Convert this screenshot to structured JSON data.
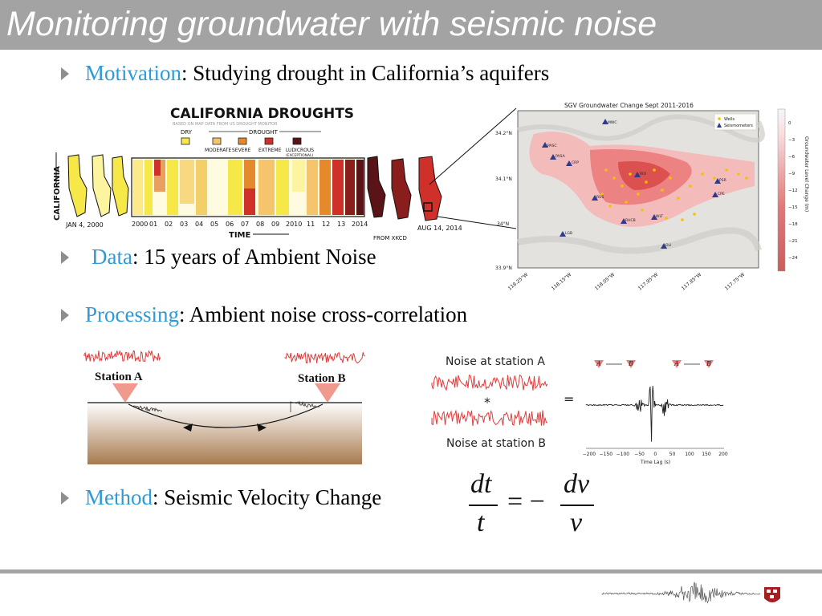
{
  "title": "Monitoring groundwater with seismic noise",
  "bullets": [
    {
      "keyword": "Motivation",
      "text": ": Studying drought in California’s aquifers"
    },
    {
      "keyword": "Data",
      "text": ": 15 years of Ambient Noise"
    },
    {
      "keyword": "Processing",
      "text": ": Ambient noise cross-correlation"
    },
    {
      "keyword": "Method",
      "text": ": Seismic Velocity Change"
    }
  ],
  "xkcd": {
    "title": "CALIFORNIA DROUGHTS",
    "subtitle": "BASED ON MAP DATA FROM US DROUGHT MONITOR",
    "legend_dry": "DRY",
    "legend_drought": "DROUGHT",
    "legend_items": [
      "MODERATE",
      "SEVERE",
      "EXTREME",
      "LUDICROUS"
    ],
    "legend_sub": "(EXCEPTIONAL)",
    "legend_colors": [
      "#f7e84a",
      "#f5c46c",
      "#e58a2c",
      "#d0302a",
      "#5a1418"
    ],
    "y_label": "CALIFORNIA",
    "start_label": "JAN 4, 2000",
    "end_label": "AUG 14, 2014",
    "years": [
      "2000",
      "01",
      "02",
      "03",
      "04",
      "05",
      "06",
      "07",
      "08",
      "09",
      "2010",
      "11",
      "12",
      "13",
      "2014"
    ],
    "x_label": "TIME",
    "credit": "FROM XKCD"
  },
  "map": {
    "title": "SGV Groundwater Change Sept 2011-2016",
    "legend": [
      "Wells",
      "Seismometers"
    ],
    "y_ticks": [
      "34.2°N",
      "34.1°N",
      "34°N",
      "33.9°N"
    ],
    "x_ticks": [
      "118.25°W",
      "118.15°W",
      "118.05°W",
      "117.95°W",
      "117.85°W",
      "117.75°W"
    ],
    "stations": [
      "MWC",
      "PASC",
      "PASA",
      "CRP",
      "RIO",
      "RUS",
      "PSR",
      "CPE",
      "RHCB",
      "WLT",
      "LGB",
      "OLI"
    ],
    "colorbar_ticks": [
      "0",
      "−3",
      "−6",
      "−9",
      "−12",
      "−15",
      "−18",
      "−21",
      "−24"
    ],
    "colorbar_label": "Groundwater Level Change (m)"
  },
  "processing": {
    "station_a": "Station A",
    "station_b": "Station B",
    "noise_a": "Noise at station A",
    "noise_b": "Noise at station B",
    "star": "*",
    "equals": "=",
    "cc_labels": [
      "A",
      "B",
      "A",
      "B"
    ],
    "lag_ticks": [
      "−200",
      "−150",
      "−100",
      "−50",
      "0",
      "50",
      "100",
      "150",
      "200"
    ],
    "lag_label": "Time Lag (s)"
  },
  "equation": {
    "dt": "dt",
    "t": "t",
    "eq": "= −",
    "dv": "dv",
    "v": "v"
  }
}
